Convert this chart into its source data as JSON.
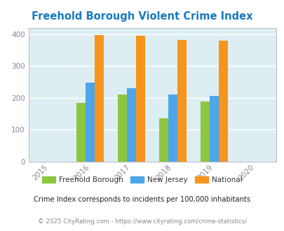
{
  "title": "Freehold Borough Violent Crime Index",
  "years": [
    2015,
    2016,
    2017,
    2018,
    2019,
    2020
  ],
  "data_years": [
    2016,
    2017,
    2018,
    2019
  ],
  "freehold": [
    185,
    210,
    135,
    188
  ],
  "new_jersey": [
    247,
    230,
    210,
    207
  ],
  "national": [
    397,
    394,
    381,
    379
  ],
  "bar_colors": {
    "freehold": "#8dc63f",
    "new_jersey": "#4da6e8",
    "national": "#f7941d"
  },
  "xlim": [
    2014.5,
    2020.5
  ],
  "ylim": [
    0,
    420
  ],
  "yticks": [
    0,
    100,
    200,
    300,
    400
  ],
  "bg_color": "#ddeef3",
  "title_color": "#1a7bbf",
  "subtitle": "Crime Index corresponds to incidents per 100,000 inhabitants",
  "footer": "© 2025 CityRating.com - https://www.cityrating.com/crime-statistics/",
  "legend_labels": [
    "Freehold Borough",
    "New Jersey",
    "National"
  ],
  "legend_label_color": "#333333",
  "bar_width": 0.22,
  "grid_color": "#ffffff",
  "tick_label_color": "#888899",
  "axis_color": "#bbbbcc",
  "subtitle_color": "#222222",
  "footer_color": "#888888"
}
